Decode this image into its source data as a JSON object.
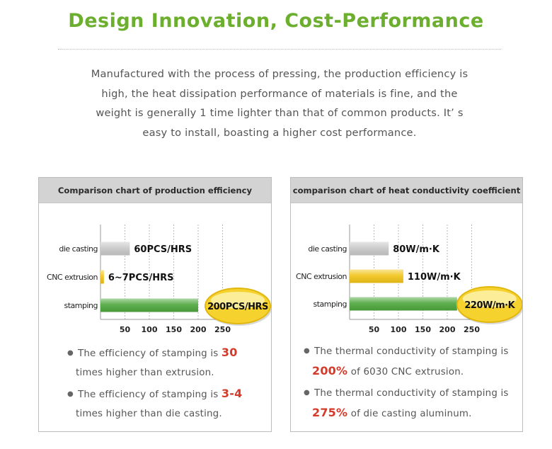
{
  "header": {
    "title": "Design Innovation, Cost-Performance",
    "lines": [
      "Manufactured with the process of pressing, the production efficiency is",
      "high, the heat dissipation performance of materials is fine, and the",
      "weight is generally 1 time lighter than that of common products. It’ s",
      "easy to install, boasting a higher cost performance."
    ]
  },
  "colors": {
    "title_green": "#6cae2e",
    "bar_gray": "#c8c8c8",
    "bar_yellow": "#f2c418",
    "bar_green": "#4ea73d",
    "highlight_red": "#d43a2a",
    "badge_gold": "#f5d22e"
  },
  "chart_data": [
    {
      "type": "bar",
      "orientation": "horizontal",
      "title": "Comparison chart of production efficiency",
      "categories": [
        "die casting",
        "CNC extrusion",
        "stamping"
      ],
      "values": [
        60,
        7,
        200
      ],
      "value_labels": [
        "60PCS/HRS",
        "6~7PCS/HRS",
        "200PCS/HRS"
      ],
      "bar_colors": [
        "#c8c8c8",
        "#f2c418",
        "#4ea73d"
      ],
      "xticks": [
        "50",
        "100",
        "150",
        "200",
        "250"
      ],
      "xlim": [
        0,
        300
      ],
      "grid": true,
      "notes": [
        {
          "pre": "The efficiency of stamping is ",
          "hl": "30",
          "post": "times higher than extrusion."
        },
        {
          "pre": "The efficiency of stamping is ",
          "hl": "3-4",
          "post": "times higher than die casting."
        }
      ]
    },
    {
      "type": "bar",
      "orientation": "horizontal",
      "title": "comparison chart of heat conductivity coefficient",
      "categories": [
        "die casting",
        "CNC extrusion",
        "stamping"
      ],
      "values": [
        80,
        110,
        220
      ],
      "value_labels": [
        "80W/m·K",
        "110W/m·K",
        "220W/m·K"
      ],
      "bar_colors": [
        "#c8c8c8",
        "#f2c418",
        "#4ea73d"
      ],
      "xticks": [
        "50",
        "100",
        "150",
        "200",
        "250"
      ],
      "xlim": [
        0,
        300
      ],
      "grid": true,
      "notes": [
        {
          "pre": "The thermal conductivity of stamping is",
          "hl": "200%",
          "post": " of 6030 CNC extrusion."
        },
        {
          "pre": "The thermal conductivity of stamping is",
          "hl": "275%",
          "post": " of die casting aluminum."
        }
      ]
    }
  ]
}
